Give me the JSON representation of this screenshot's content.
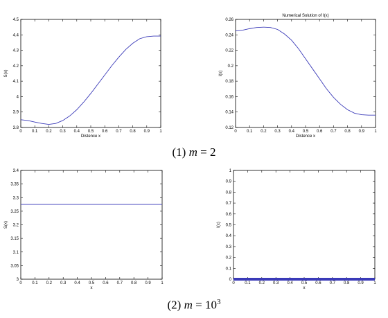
{
  "captions": {
    "row1": {
      "prefix": "(1) ",
      "var": "m",
      "eq": " = ",
      "value": "2"
    },
    "row2": {
      "prefix": "(2) ",
      "var": "m",
      "eq": " = ",
      "base": "10",
      "exp": "3"
    }
  },
  "colors": {
    "series": "#3a3ab8",
    "axes": "#000000"
  },
  "chart_data": [
    {
      "type": "line",
      "title": "",
      "xlabel": "Distence x",
      "ylabel": "S(x)",
      "xlim": [
        0,
        1
      ],
      "ylim": [
        3.8,
        4.5
      ],
      "xticks": [
        "0",
        "0.1",
        "0.2",
        "0.3",
        "0.4",
        "0.5",
        "0.6",
        "0.7",
        "0.8",
        "0.9",
        "1"
      ],
      "yticks": [
        "3.8",
        "3.9",
        "4",
        "4.1",
        "4.2",
        "4.3",
        "4.4",
        "4.5"
      ],
      "grid": false,
      "series": [
        {
          "x": [
            0,
            0.05,
            0.1,
            0.15,
            0.2,
            0.25,
            0.3,
            0.35,
            0.4,
            0.45,
            0.5,
            0.55,
            0.6,
            0.65,
            0.7,
            0.75,
            0.8,
            0.85,
            0.9,
            0.95,
            1
          ],
          "y": [
            3.85,
            3.845,
            3.835,
            3.826,
            3.82,
            3.826,
            3.845,
            3.875,
            3.915,
            3.965,
            4.02,
            4.08,
            4.14,
            4.2,
            4.255,
            4.305,
            4.345,
            4.375,
            4.388,
            4.392,
            4.392
          ]
        }
      ]
    },
    {
      "type": "line",
      "title": "Numerical Solution of I(x)",
      "xlabel": "Distence x",
      "ylabel": "I(x)",
      "xlim": [
        0,
        1
      ],
      "ylim": [
        0.12,
        0.26
      ],
      "xticks": [
        "0",
        "0.1",
        "0.2",
        "0.3",
        "0.4",
        "0.5",
        "0.6",
        "0.7",
        "0.8",
        "0.9",
        "1"
      ],
      "yticks": [
        "0.12",
        "0.14",
        "0.16",
        "0.18",
        "0.2",
        "0.22",
        "0.24",
        "0.26"
      ],
      "grid": false,
      "series": [
        {
          "x": [
            0,
            0.05,
            0.1,
            0.15,
            0.2,
            0.25,
            0.3,
            0.35,
            0.4,
            0.45,
            0.5,
            0.55,
            0.6,
            0.65,
            0.7,
            0.75,
            0.8,
            0.85,
            0.9,
            0.95,
            1
          ],
          "y": [
            0.245,
            0.246,
            0.248,
            0.2495,
            0.25,
            0.2495,
            0.247,
            0.241,
            0.233,
            0.222,
            0.209,
            0.196,
            0.183,
            0.17,
            0.159,
            0.15,
            0.143,
            0.1385,
            0.1365,
            0.136,
            0.136
          ]
        }
      ]
    },
    {
      "type": "line",
      "title": "",
      "xlabel": "x",
      "ylabel": "S(x)",
      "xlim": [
        0,
        1
      ],
      "ylim": [
        3,
        3.4
      ],
      "xticks": [
        "0",
        "0.1",
        "0.2",
        "0.3",
        "0.4",
        "0.5",
        "0.6",
        "0.7",
        "0.8",
        "0.9",
        "1"
      ],
      "yticks": [
        "3",
        "3.05",
        "3.1",
        "3.15",
        "3.2",
        "3.25",
        "3.3",
        "3.35",
        "3.4"
      ],
      "grid": false,
      "series": [
        {
          "x": [
            0,
            1
          ],
          "y": [
            3.275,
            3.275
          ]
        }
      ]
    },
    {
      "type": "line",
      "title": "",
      "xlabel": "x",
      "ylabel": "I(x)",
      "xlim": [
        0,
        1
      ],
      "ylim": [
        0,
        1
      ],
      "xticks": [
        "0",
        "0.1",
        "0.2",
        "0.3",
        "0.4",
        "0.5",
        "0.6",
        "0.7",
        "0.8",
        "0.9",
        "1"
      ],
      "yticks": [
        "0",
        "0.1",
        "0.2",
        "0.3",
        "0.4",
        "0.5",
        "0.6",
        "0.7",
        "0.8",
        "0.9",
        "1"
      ],
      "grid": false,
      "series": [
        {
          "x": [
            0,
            1
          ],
          "y": [
            0,
            0
          ],
          "bold": true
        }
      ]
    }
  ]
}
